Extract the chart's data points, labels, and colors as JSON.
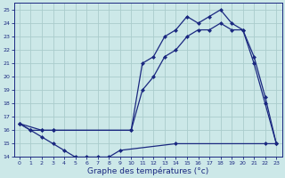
{
  "xlabel": "Graphe des températures (°c)",
  "bg_color": "#cce8e8",
  "grid_color": "#aacccc",
  "line_color": "#1a2880",
  "ylim": [
    14,
    25.5
  ],
  "xlim": [
    -0.5,
    23.5
  ],
  "yticks": [
    14,
    15,
    16,
    17,
    18,
    19,
    20,
    21,
    22,
    23,
    24,
    25
  ],
  "xticks": [
    0,
    1,
    2,
    3,
    4,
    5,
    6,
    7,
    8,
    9,
    10,
    11,
    12,
    13,
    14,
    15,
    16,
    17,
    18,
    19,
    20,
    21,
    22,
    23
  ],
  "series_top": {
    "x": [
      0,
      1,
      2,
      3,
      10,
      11,
      12,
      13,
      14,
      15,
      16,
      17,
      18,
      19,
      20,
      21,
      22,
      23
    ],
    "y": [
      16.5,
      16.0,
      16.0,
      16.0,
      16.0,
      21.0,
      21.5,
      23.0,
      23.5,
      24.5,
      24.0,
      24.5,
      25.0,
      24.0,
      23.5,
      21.0,
      18.0,
      15.0
    ]
  },
  "series_mid": {
    "x": [
      0,
      2,
      3,
      10,
      11,
      12,
      13,
      14,
      15,
      16,
      17,
      18,
      19,
      20,
      21,
      22,
      23
    ],
    "y": [
      16.5,
      16.0,
      16.0,
      16.0,
      19.0,
      20.0,
      21.5,
      22.0,
      23.0,
      23.5,
      23.5,
      24.0,
      23.5,
      23.5,
      21.5,
      18.5,
      15.0
    ]
  },
  "series_bot": {
    "x": [
      0,
      1,
      2,
      3,
      4,
      5,
      6,
      7,
      8,
      9,
      14,
      22,
      23
    ],
    "y": [
      16.5,
      16.0,
      15.5,
      15.0,
      14.5,
      14.0,
      14.0,
      14.0,
      14.0,
      14.5,
      15.0,
      15.0,
      15.0
    ]
  }
}
